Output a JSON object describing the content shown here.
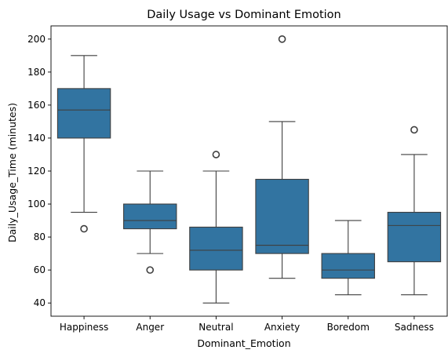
{
  "chart_data": {
    "type": "box",
    "title": "Daily Usage vs Dominant Emotion",
    "xlabel": "Dominant_Emotion",
    "ylabel": "Daily_Usage_Time (minutes)",
    "ylim": [
      32,
      208
    ],
    "yticks": [
      40,
      60,
      80,
      100,
      120,
      140,
      160,
      180,
      200
    ],
    "grid": false,
    "color": "#3274a1",
    "categories": [
      "Happiness",
      "Anger",
      "Neutral",
      "Anxiety",
      "Boredom",
      "Sadness"
    ],
    "boxes": [
      {
        "whisker_low": 95,
        "q1": 140,
        "median": 157,
        "q3": 170,
        "whisker_high": 190,
        "outliers": [
          85
        ]
      },
      {
        "whisker_low": 70,
        "q1": 85,
        "median": 90,
        "q3": 100,
        "whisker_high": 120,
        "outliers": [
          60
        ]
      },
      {
        "whisker_low": 40,
        "q1": 60,
        "median": 72,
        "q3": 86,
        "whisker_high": 120,
        "outliers": [
          130
        ]
      },
      {
        "whisker_low": 55,
        "q1": 70,
        "median": 75,
        "q3": 115,
        "whisker_high": 150,
        "outliers": [
          200
        ]
      },
      {
        "whisker_low": 45,
        "q1": 55,
        "median": 60,
        "q3": 70,
        "whisker_high": 90,
        "outliers": []
      },
      {
        "whisker_low": 45,
        "q1": 65,
        "median": 87,
        "q3": 95,
        "whisker_high": 130,
        "outliers": [
          145
        ]
      }
    ]
  }
}
